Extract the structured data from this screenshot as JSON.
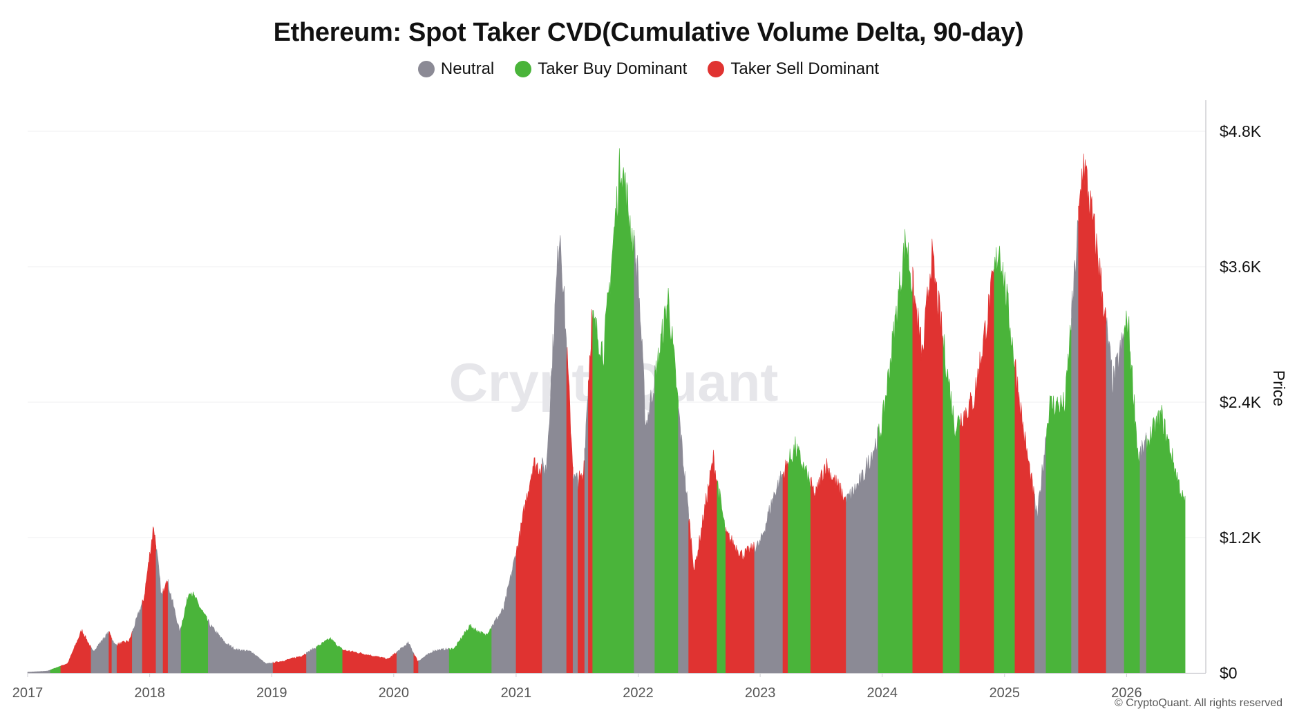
{
  "colors": {
    "neutral": "#8b8a95",
    "buy": "#4ab43a",
    "sell": "#e03331",
    "grid": "#efeff2",
    "axis": "#cfcfd4",
    "watermark": "#e6e6ea"
  },
  "watermark": "CryptoQuant",
  "copyright": "© CryptoQuant. All rights reserved",
  "chart_data": {
    "type": "area",
    "title": "Ethereum: Spot Taker CVD(Cumulative Volume Delta, 90-day)",
    "legend": [
      {
        "key": "neutral",
        "label": "Neutral"
      },
      {
        "key": "buy",
        "label": "Taker Buy Dominant"
      },
      {
        "key": "sell",
        "label": "Taker Sell Dominant"
      }
    ],
    "legend_position": "top-center",
    "ylabel": "Price",
    "y_axis_side": "right",
    "ylim": [
      0,
      4800
    ],
    "yticks": [
      {
        "value": 0,
        "label": "$0"
      },
      {
        "value": 1200,
        "label": "$1.2K"
      },
      {
        "value": 2400,
        "label": "$2.4K"
      },
      {
        "value": 3600,
        "label": "$3.6K"
      },
      {
        "value": 4800,
        "label": "$4.8K"
      }
    ],
    "xlim": [
      "2017-01-01",
      "2026-07-01"
    ],
    "xticks": [
      "2017",
      "2018",
      "2019",
      "2020",
      "2021",
      "2022",
      "2023",
      "2024",
      "2025",
      "2026"
    ],
    "grid": true,
    "price": [
      [
        "2017-01-01",
        8
      ],
      [
        "2017-03-01",
        18
      ],
      [
        "2017-05-01",
        90
      ],
      [
        "2017-06-12",
        400
      ],
      [
        "2017-07-15",
        200
      ],
      [
        "2017-09-01",
        380
      ],
      [
        "2017-09-20",
        260
      ],
      [
        "2017-11-01",
        300
      ],
      [
        "2017-12-15",
        700
      ],
      [
        "2018-01-13",
        1380
      ],
      [
        "2018-02-06",
        700
      ],
      [
        "2018-02-20",
        900
      ],
      [
        "2018-04-01",
        380
      ],
      [
        "2018-05-01",
        780
      ],
      [
        "2018-06-30",
        450
      ],
      [
        "2018-08-15",
        280
      ],
      [
        "2018-09-15",
        220
      ],
      [
        "2018-11-01",
        200
      ],
      [
        "2018-12-15",
        85
      ],
      [
        "2019-02-01",
        110
      ],
      [
        "2019-04-01",
        160
      ],
      [
        "2019-06-25",
        320
      ],
      [
        "2019-08-01",
        215
      ],
      [
        "2019-10-01",
        180
      ],
      [
        "2019-12-15",
        130
      ],
      [
        "2020-02-14",
        280
      ],
      [
        "2020-03-13",
        110
      ],
      [
        "2020-05-01",
        210
      ],
      [
        "2020-07-01",
        230
      ],
      [
        "2020-08-15",
        440
      ],
      [
        "2020-10-01",
        350
      ],
      [
        "2020-11-25",
        600
      ],
      [
        "2021-01-10",
        1250
      ],
      [
        "2021-02-20",
        1950
      ],
      [
        "2021-04-01",
        1900
      ],
      [
        "2021-05-12",
        4200
      ],
      [
        "2021-06-22",
        1800
      ],
      [
        "2021-07-20",
        1800
      ],
      [
        "2021-08-15",
        3300
      ],
      [
        "2021-09-20",
        3000
      ],
      [
        "2021-11-10",
        4800
      ],
      [
        "2022-01-01",
        3700
      ],
      [
        "2022-01-24",
        2300
      ],
      [
        "2022-03-01",
        2900
      ],
      [
        "2022-04-01",
        3500
      ],
      [
        "2022-05-15",
        2000
      ],
      [
        "2022-06-18",
        950
      ],
      [
        "2022-08-14",
        2000
      ],
      [
        "2022-09-20",
        1300
      ],
      [
        "2022-11-09",
        1100
      ],
      [
        "2022-12-31",
        1200
      ],
      [
        "2023-02-15",
        1700
      ],
      [
        "2023-04-16",
        2100
      ],
      [
        "2023-06-15",
        1650
      ],
      [
        "2023-07-15",
        1950
      ],
      [
        "2023-09-15",
        1600
      ],
      [
        "2023-11-01",
        1800
      ],
      [
        "2023-12-31",
        2300
      ],
      [
        "2024-03-12",
        4050
      ],
      [
        "2024-05-01",
        2950
      ],
      [
        "2024-05-27",
        3900
      ],
      [
        "2024-08-05",
        2300
      ],
      [
        "2024-10-01",
        2550
      ],
      [
        "2024-12-16",
        4000
      ],
      [
        "2025-01-15",
        3300
      ],
      [
        "2025-03-01",
        2200
      ],
      [
        "2025-04-09",
        1450
      ],
      [
        "2025-05-15",
        2500
      ],
      [
        "2025-07-01",
        2500
      ],
      [
        "2025-08-24",
        4800
      ],
      [
        "2025-10-11",
        3800
      ],
      [
        "2025-11-21",
        2700
      ],
      [
        "2026-01-05",
        3300
      ],
      [
        "2026-02-05",
        2000
      ],
      [
        "2026-04-15",
        2400
      ],
      [
        "2026-06-20",
        1600
      ]
    ],
    "regimes": [
      [
        "2017-01-01",
        "2017-03-10",
        "neutral"
      ],
      [
        "2017-03-10",
        "2017-04-10",
        "buy"
      ],
      [
        "2017-04-10",
        "2017-07-10",
        "sell"
      ],
      [
        "2017-07-10",
        "2017-09-01",
        "neutral"
      ],
      [
        "2017-09-01",
        "2017-09-10",
        "sell"
      ],
      [
        "2017-09-10",
        "2017-09-25",
        "neutral"
      ],
      [
        "2017-09-25",
        "2017-11-10",
        "sell"
      ],
      [
        "2017-11-10",
        "2017-12-10",
        "neutral"
      ],
      [
        "2017-12-10",
        "2018-01-20",
        "sell"
      ],
      [
        "2018-01-20",
        "2018-02-10",
        "neutral"
      ],
      [
        "2018-02-10",
        "2018-02-25",
        "sell"
      ],
      [
        "2018-02-25",
        "2018-04-05",
        "neutral"
      ],
      [
        "2018-04-05",
        "2018-06-25",
        "buy"
      ],
      [
        "2018-06-25",
        "2019-01-05",
        "neutral"
      ],
      [
        "2019-01-05",
        "2019-04-15",
        "sell"
      ],
      [
        "2019-04-15",
        "2019-05-15",
        "neutral"
      ],
      [
        "2019-05-15",
        "2019-08-01",
        "buy"
      ],
      [
        "2019-08-01",
        "2020-01-10",
        "sell"
      ],
      [
        "2020-01-10",
        "2020-03-01",
        "neutral"
      ],
      [
        "2020-03-01",
        "2020-03-15",
        "sell"
      ],
      [
        "2020-03-15",
        "2020-06-15",
        "neutral"
      ],
      [
        "2020-06-15",
        "2020-10-20",
        "buy"
      ],
      [
        "2020-10-20",
        "2021-01-01",
        "neutral"
      ],
      [
        "2021-01-01",
        "2021-03-20",
        "sell"
      ],
      [
        "2021-03-20",
        "2021-06-01",
        "neutral"
      ],
      [
        "2021-06-01",
        "2021-06-20",
        "sell"
      ],
      [
        "2021-06-20",
        "2021-07-05",
        "neutral"
      ],
      [
        "2021-07-05",
        "2021-07-25",
        "sell"
      ],
      [
        "2021-07-25",
        "2021-08-05",
        "neutral"
      ],
      [
        "2021-08-05",
        "2021-08-18",
        "sell"
      ],
      [
        "2021-08-18",
        "2021-12-20",
        "buy"
      ],
      [
        "2021-12-20",
        "2022-02-20",
        "neutral"
      ],
      [
        "2022-02-20",
        "2022-05-01",
        "buy"
      ],
      [
        "2022-05-01",
        "2022-06-01",
        "neutral"
      ],
      [
        "2022-06-01",
        "2022-08-25",
        "sell"
      ],
      [
        "2022-08-25",
        "2022-09-20",
        "buy"
      ],
      [
        "2022-09-20",
        "2022-12-15",
        "sell"
      ],
      [
        "2022-12-15",
        "2023-03-10",
        "neutral"
      ],
      [
        "2023-03-10",
        "2023-03-25",
        "sell"
      ],
      [
        "2023-03-25",
        "2023-06-01",
        "buy"
      ],
      [
        "2023-06-01",
        "2023-09-15",
        "sell"
      ],
      [
        "2023-09-15",
        "2023-12-20",
        "neutral"
      ],
      [
        "2023-12-20",
        "2024-04-01",
        "buy"
      ],
      [
        "2024-04-01",
        "2024-07-01",
        "sell"
      ],
      [
        "2024-07-01",
        "2024-08-20",
        "buy"
      ],
      [
        "2024-08-20",
        "2024-12-01",
        "sell"
      ],
      [
        "2024-12-01",
        "2025-02-01",
        "buy"
      ],
      [
        "2025-02-01",
        "2025-04-01",
        "sell"
      ],
      [
        "2025-04-01",
        "2025-05-05",
        "neutral"
      ],
      [
        "2025-05-05",
        "2025-07-20",
        "buy"
      ],
      [
        "2025-07-20",
        "2025-08-10",
        "neutral"
      ],
      [
        "2025-08-10",
        "2025-11-01",
        "sell"
      ],
      [
        "2025-11-01",
        "2025-12-25",
        "neutral"
      ],
      [
        "2025-12-25",
        "2026-02-10",
        "buy"
      ],
      [
        "2026-02-10",
        "2026-03-01",
        "neutral"
      ],
      [
        "2026-03-01",
        "2026-06-25",
        "buy"
      ]
    ]
  }
}
